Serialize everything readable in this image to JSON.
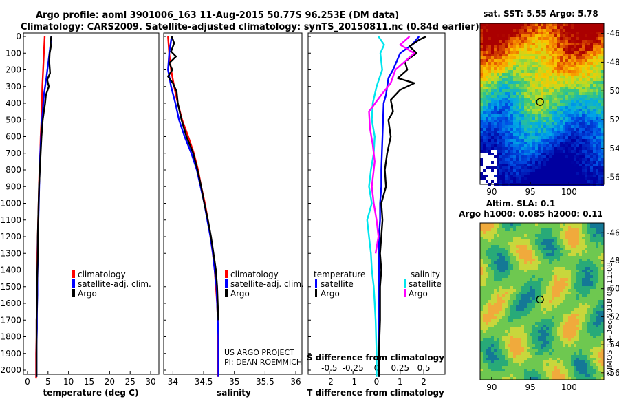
{
  "header": {
    "title_line1": "Argo profile: aoml 3901006_163 11-Aug-2015 50.77S 96.253E (DM data)",
    "title_line2": "Climatology: CARS2009. Satellite-adjusted climatology: synTS_20150811.nc (0.84d earlier)"
  },
  "colors": {
    "climatology": "#ff0000",
    "satellite": "#0000ff",
    "argo": "#000000",
    "salinity_satellite": "#00e5ee",
    "salinity_argo": "#ff00ff"
  },
  "credits": {
    "line1": "US ARGO PROJECT",
    "line2": "PI: DEAN ROEMMICH"
  },
  "timestamp": "©IMOS 14-Dec-2018 09:11:08",
  "chart_data": [
    {
      "type": "line",
      "id": "temperature",
      "xlabel": "temperature (deg C)",
      "xlim": [
        -1,
        32
      ],
      "xticks": [
        0,
        5,
        10,
        15,
        20,
        25,
        30
      ],
      "ylim": [
        2060,
        0
      ],
      "yticks": [
        0,
        100,
        200,
        300,
        400,
        500,
        600,
        700,
        800,
        900,
        1000,
        1100,
        1200,
        1300,
        1400,
        1500,
        1600,
        1700,
        1800,
        1900,
        2000
      ],
      "legend": [
        "climatology",
        "satellite-adj. clim.",
        "Argo"
      ],
      "series": [
        {
          "name": "climatology",
          "color": "#ff0000",
          "x": [
            4.2,
            4.0,
            3.8,
            3.6,
            3.5,
            3.4,
            3.2,
            3.1,
            2.9,
            2.8,
            2.7,
            2.6,
            2.5,
            2.4,
            2.4,
            2.3,
            2.3,
            2.2,
            2.2,
            2.1,
            2.1,
            2.1
          ],
          "y": [
            0,
            100,
            200,
            300,
            400,
            500,
            600,
            700,
            800,
            900,
            1000,
            1100,
            1200,
            1300,
            1400,
            1500,
            1600,
            1700,
            1800,
            1900,
            2000,
            2050
          ]
        },
        {
          "name": "satellite-adj. clim.",
          "color": "#0000ff",
          "x": [
            5.8,
            5.6,
            5.1,
            4.6,
            4.0,
            3.7,
            3.4,
            3.2,
            3.0,
            2.9,
            2.8,
            2.7,
            2.6,
            2.5,
            2.5,
            2.4,
            2.4,
            2.3,
            2.3,
            2.2,
            2.2,
            2.2
          ],
          "y": [
            0,
            50,
            150,
            250,
            350,
            450,
            550,
            650,
            750,
            850,
            950,
            1050,
            1150,
            1250,
            1350,
            1450,
            1550,
            1650,
            1750,
            1850,
            1950,
            2040
          ]
        },
        {
          "name": "Argo",
          "color": "#000000",
          "x": [
            5.8,
            5.6,
            5.7,
            5.4,
            5.3,
            5.5,
            4.8,
            5.2,
            4.5,
            4.3,
            4.0,
            3.7,
            3.4,
            3.2,
            3.0,
            2.8,
            2.7,
            2.6,
            2.5,
            2.5,
            2.4,
            2.3,
            2.3,
            2.2,
            2.2,
            2.2
          ],
          "y": [
            0,
            30,
            60,
            100,
            150,
            220,
            260,
            300,
            350,
            400,
            450,
            500,
            600,
            700,
            800,
            900,
            1000,
            1100,
            1200,
            1300,
            1400,
            1500,
            1600,
            1700,
            1900,
            2040
          ]
        }
      ]
    },
    {
      "type": "line",
      "id": "salinity",
      "xlabel": "salinity",
      "xlim": [
        33.85,
        36.1
      ],
      "xticks": [
        34,
        34.5,
        35,
        35.5,
        36
      ],
      "ylim": [
        2060,
        0
      ],
      "legend": [
        "climatology",
        "satellite-adj. clim.",
        "Argo"
      ],
      "series": [
        {
          "name": "climatology",
          "color": "#ff0000",
          "x": [
            33.92,
            33.94,
            33.97,
            34.02,
            34.08,
            34.15,
            34.25,
            34.34,
            34.41,
            34.46,
            34.52,
            34.57,
            34.61,
            34.65,
            34.68,
            34.7,
            34.72,
            34.73,
            34.73,
            34.73,
            34.73
          ],
          "y": [
            0,
            100,
            200,
            300,
            400,
            500,
            600,
            700,
            800,
            900,
            1000,
            1100,
            1200,
            1300,
            1400,
            1500,
            1600,
            1700,
            1800,
            1900,
            2040
          ]
        },
        {
          "name": "satellite-adj. clim.",
          "color": "#0000ff",
          "x": [
            33.98,
            33.94,
            33.92,
            33.97,
            34.04,
            34.1,
            34.19,
            34.3,
            34.39,
            34.45,
            34.51,
            34.56,
            34.61,
            34.65,
            34.68,
            34.71,
            34.72,
            34.73,
            34.74,
            34.74,
            34.74
          ],
          "y": [
            0,
            100,
            200,
            300,
            400,
            500,
            600,
            700,
            800,
            900,
            1000,
            1100,
            1200,
            1300,
            1400,
            1500,
            1600,
            1700,
            1800,
            1900,
            2040
          ]
        },
        {
          "name": "Argo",
          "color": "#000000",
          "x": [
            33.98,
            34.02,
            33.97,
            34.05,
            33.94,
            33.99,
            33.92,
            34.0,
            34.06,
            34.08,
            34.14,
            34.22,
            34.33,
            34.4,
            34.46,
            34.51,
            34.57,
            34.62,
            34.66,
            34.7,
            34.72,
            34.73,
            34.74
          ],
          "y": [
            0,
            40,
            90,
            120,
            160,
            200,
            240,
            280,
            330,
            400,
            500,
            600,
            700,
            800,
            900,
            1000,
            1100,
            1200,
            1300,
            1400,
            1500,
            1600,
            1700
          ]
        }
      ]
    },
    {
      "type": "line",
      "id": "differences",
      "xlabel": "T difference from climatology",
      "xlabel_top": "S difference from climatology",
      "xlim": [
        -2.9,
        2.9
      ],
      "xticks_T": [
        -2,
        -1,
        0,
        1,
        2
      ],
      "xticks_S": [
        -0.5,
        -0.25,
        0,
        0.25,
        0.5
      ],
      "ylim": [
        2060,
        0
      ],
      "legend_temperature": {
        "heading": "temperature",
        "items": [
          "satellite",
          "Argo"
        ]
      },
      "legend_salinity": {
        "heading": "salinity",
        "items": [
          "satellite",
          "Argo"
        ]
      },
      "series": [
        {
          "name": "T satellite",
          "color": "#0000ff",
          "x": [
            1.8,
            1.5,
            1.0,
            0.7,
            0.5,
            0.4,
            0.3,
            0.25,
            0.2,
            0.2,
            0.15,
            0.15,
            0.1,
            0.1,
            0.1,
            0.1,
            0.1,
            0.1,
            0.1,
            0.1
          ],
          "y": [
            0,
            50,
            100,
            200,
            250,
            350,
            400,
            600,
            800,
            900,
            1000,
            1100,
            1200,
            1300,
            1400,
            1500,
            1600,
            1700,
            1900,
            2040
          ]
        },
        {
          "name": "T Argo",
          "color": "#000000",
          "x": [
            2.1,
            1.8,
            1.4,
            1.7,
            1.2,
            1.3,
            0.9,
            1.6,
            1.0,
            0.6,
            0.7,
            0.5,
            0.6,
            0.45,
            0.35,
            0.4,
            0.2,
            0.25,
            0.2,
            0.15,
            0.2,
            0.15,
            0.15,
            0.1,
            0.1
          ],
          "y": [
            0,
            20,
            60,
            100,
            150,
            200,
            250,
            280,
            320,
            380,
            450,
            500,
            600,
            700,
            800,
            900,
            1000,
            1100,
            1200,
            1300,
            1400,
            1500,
            1700,
            1900,
            2040
          ]
        },
        {
          "name": "S satellite",
          "color": "#00e5ee",
          "x": [
            0.02,
            0.08,
            0.04,
            0.06,
            0.0,
            -0.04,
            -0.05,
            -0.02,
            -0.03,
            -0.06,
            -0.08,
            -0.05,
            -0.1,
            -0.08,
            -0.06,
            -0.05,
            -0.03,
            -0.02,
            -0.01,
            0.0,
            0.0
          ],
          "y": [
            0,
            50,
            100,
            200,
            300,
            400,
            500,
            600,
            700,
            800,
            900,
            1000,
            1100,
            1200,
            1300,
            1400,
            1500,
            1600,
            1700,
            1900,
            2040
          ]
        },
        {
          "name": "S Argo",
          "color": "#ff00ff",
          "x": [
            0.35,
            0.25,
            0.4,
            0.3,
            0.2,
            0.15,
            0.05,
            -0.08,
            -0.07,
            -0.04,
            -0.02,
            -0.05,
            -0.03,
            0.0,
            0.02,
            -0.01
          ],
          "y": [
            0,
            50,
            100,
            150,
            200,
            280,
            350,
            450,
            550,
            650,
            750,
            900,
            1000,
            1100,
            1200,
            1300
          ]
        }
      ]
    },
    {
      "type": "heatmap",
      "id": "sst_map",
      "title": "sat. SST: 5.55 Argo: 5.78",
      "xticks": [
        90,
        95,
        100
      ],
      "yticks": [
        -46,
        -48,
        -50,
        -52,
        -54,
        -56
      ],
      "xlim": [
        88.5,
        104.5
      ],
      "ylim": [
        -56.5,
        -45.3
      ],
      "argo_position": [
        96.25,
        -50.77
      ]
    },
    {
      "type": "heatmap",
      "id": "sla_map",
      "title_line1": "Altim. SLA: 0.1",
      "title_line2": "Argo h1000: 0.085 h2000: 0.11",
      "xticks": [
        90,
        95,
        100
      ],
      "yticks": [
        -46,
        -48,
        -50,
        -52,
        -54,
        -56
      ],
      "xlim": [
        88.5,
        104.5
      ],
      "ylim": [
        -56.5,
        -45.3
      ],
      "argo_position": [
        96.25,
        -50.77
      ]
    }
  ]
}
